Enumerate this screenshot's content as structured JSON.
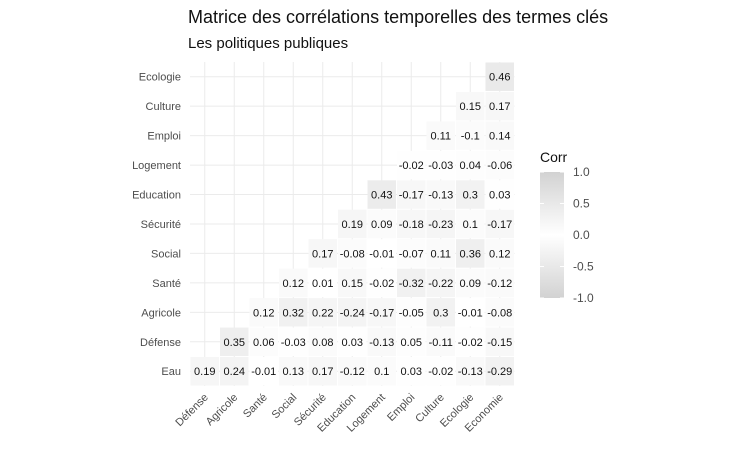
{
  "title": "Matrice des corrélations temporelles des termes clés",
  "subtitle": "Les politiques publiques",
  "chart_data": {
    "type": "heatmap",
    "title": "Matrice des corrélations temporelles des termes clés",
    "subtitle": "Les politiques publiques",
    "x_labels": [
      "Défense",
      "Agricole",
      "Santé",
      "Social",
      "Sécurité",
      "Education",
      "Logement",
      "Emploi",
      "Culture",
      "Ecologie",
      "Economie"
    ],
    "y_labels": [
      "Eau",
      "Défense",
      "Agricole",
      "Santé",
      "Social",
      "Sécurité",
      "Education",
      "Logement",
      "Emploi",
      "Culture",
      "Ecologie"
    ],
    "rows": [
      [
        0.19,
        0.24,
        -0.01,
        0.13,
        0.17,
        -0.12,
        0.1,
        0.03,
        -0.02,
        -0.13,
        -0.29
      ],
      [
        null,
        0.35,
        0.06,
        -0.03,
        0.08,
        0.03,
        -0.13,
        0.05,
        -0.11,
        -0.02,
        -0.15
      ],
      [
        null,
        null,
        0.12,
        0.32,
        0.22,
        -0.24,
        -0.17,
        -0.05,
        0.3,
        -0.01,
        -0.08
      ],
      [
        null,
        null,
        null,
        0.12,
        0.01,
        0.15,
        -0.02,
        -0.32,
        -0.22,
        0.09,
        -0.12
      ],
      [
        null,
        null,
        null,
        null,
        0.17,
        -0.08,
        -0.01,
        -0.07,
        0.11,
        0.36,
        0.12
      ],
      [
        null,
        null,
        null,
        null,
        null,
        0.19,
        0.09,
        -0.18,
        -0.23,
        0.1,
        -0.17
      ],
      [
        null,
        null,
        null,
        null,
        null,
        null,
        0.43,
        -0.17,
        -0.13,
        0.3,
        0.03
      ],
      [
        null,
        null,
        null,
        null,
        null,
        null,
        null,
        -0.02,
        -0.03,
        0.04,
        -0.06
      ],
      [
        null,
        null,
        null,
        null,
        null,
        null,
        null,
        null,
        0.11,
        -0.1,
        0.14
      ],
      [
        null,
        null,
        null,
        null,
        null,
        null,
        null,
        null,
        null,
        0.15,
        0.17
      ],
      [
        null,
        null,
        null,
        null,
        null,
        null,
        null,
        null,
        null,
        null,
        0.46
      ]
    ],
    "legend": {
      "title": "Corr",
      "range": [
        -1.0,
        1.0
      ],
      "ticks": [
        "1.0",
        "0.5",
        "0.0",
        "-0.5",
        "-1.0"
      ],
      "placement": "right",
      "colors": {
        "high": "#d2d2d2",
        "mid": "#ffffff",
        "low": "#d2d2d2"
      }
    },
    "grid": true
  }
}
